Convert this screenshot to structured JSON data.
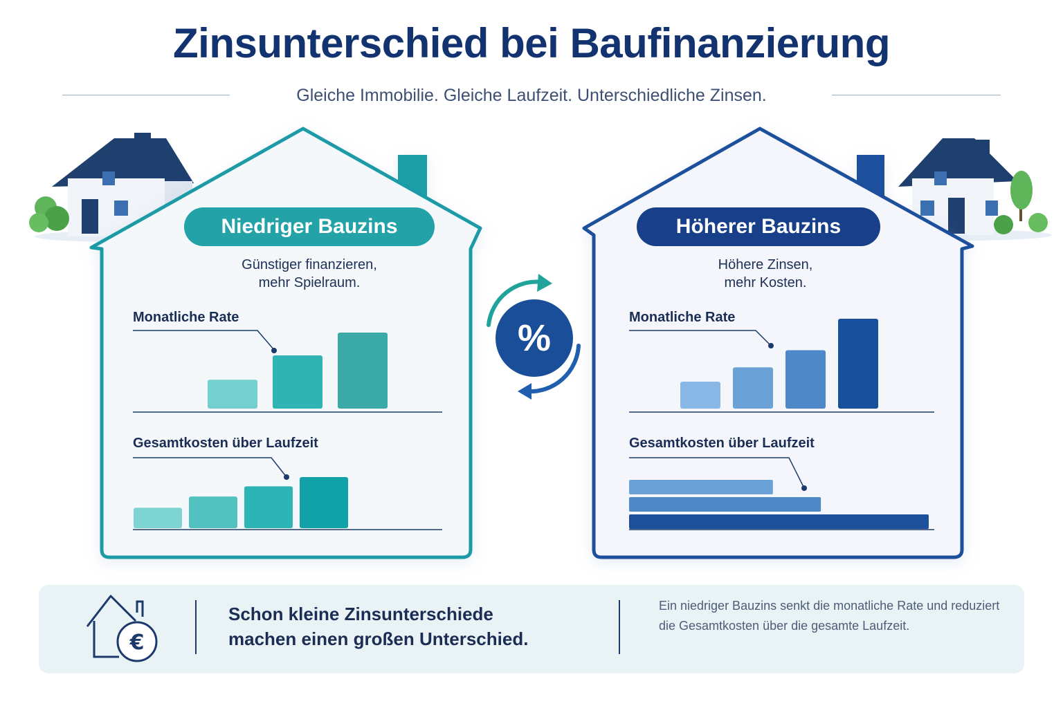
{
  "title": "Zinsunterschied bei Baufinanzierung",
  "subtitle": "Gleiche Immobilie. Gleiche Laufzeit. Unterschiedliche Zinsen.",
  "left_panel": {
    "badge": "Niedriger Bauzins",
    "tagline_line1": "Günstiger finanzieren,",
    "tagline_line2": "mehr Spielraum.",
    "monthly_label": "Monatliche Rate",
    "total_label": "Gesamtkosten über Laufzeit",
    "accent": "#1a9ba6",
    "badge_color": "#23a2a7"
  },
  "right_panel": {
    "badge": "Höherer Bauzins",
    "tagline_line1": "Höhere Zinsen,",
    "tagline_line2": "mehr Kosten.",
    "monthly_label": "Monatliche Rate",
    "total_label": "Gesamtkosten über Laufzeit",
    "accent": "#1f4f9c",
    "badge_color": "#173f8a"
  },
  "center_icon": {
    "symbol": "%",
    "name": "percent-exchange-icon"
  },
  "chart_data": [
    {
      "type": "bar",
      "name": "left-monthly",
      "categories": [
        "1",
        "2",
        "3"
      ],
      "values": [
        0.38,
        0.7,
        1.0
      ],
      "colors": [
        "#74d0cf",
        "#2fb3b3",
        "#3aa9a8"
      ]
    },
    {
      "type": "bar",
      "name": "left-total",
      "categories": [
        "1",
        "2",
        "3",
        "4"
      ],
      "values": [
        0.4,
        0.62,
        0.82,
        1.0
      ],
      "colors": [
        "#7dd4d2",
        "#52c2c1",
        "#2db4b4",
        "#10a2a6"
      ]
    },
    {
      "type": "bar",
      "name": "right-monthly",
      "categories": [
        "1",
        "2",
        "3",
        "4"
      ],
      "values": [
        0.3,
        0.46,
        0.65,
        1.0
      ],
      "colors": [
        "#8ab8e6",
        "#6aa2d8",
        "#4f88c8",
        "#1a4f9c"
      ]
    },
    {
      "type": "bar",
      "orientation": "horizontal",
      "name": "right-total",
      "categories": [
        "1",
        "2",
        "3"
      ],
      "values": [
        0.48,
        0.64,
        1.0
      ],
      "colors": [
        "#6aa2d8",
        "#4f88c8",
        "#1d4f9a"
      ]
    }
  ],
  "bottom": {
    "headline_line1": "Schon kleine Zinsunterschiede",
    "headline_line2": "machen einen großen Unterschied.",
    "note": "Ein niedriger Bauzins senkt die monatliche Rate und reduziert die Gesamtkosten über die gesamte Laufzeit.",
    "icon": "house-euro-icon"
  }
}
